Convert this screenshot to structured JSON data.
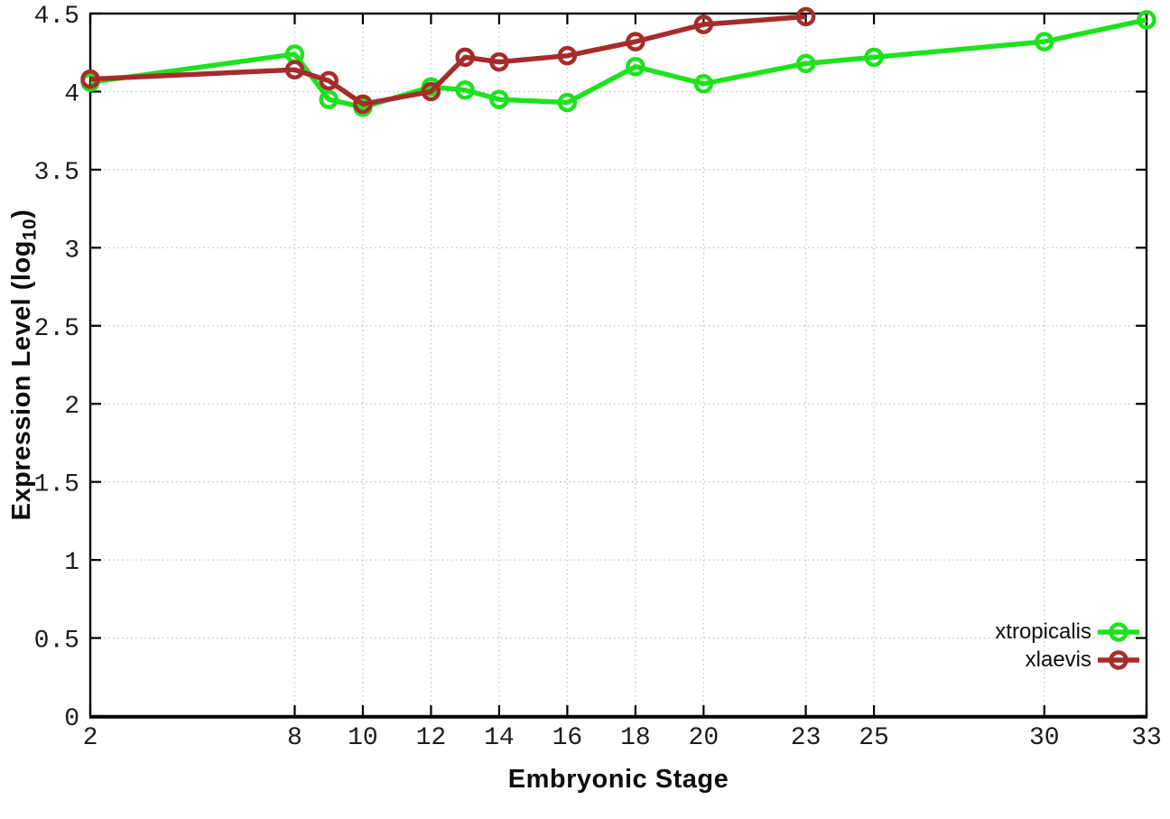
{
  "chart_data": {
    "type": "line",
    "title": "",
    "xlabel": "Embryonic Stage",
    "ylabel": "Expression Level (log10)",
    "ylabel_parts": {
      "prefix": "Expression Level (log",
      "sub": "10",
      "suffix": ")"
    },
    "xlim": [
      2,
      33
    ],
    "ylim": [
      0,
      4.5
    ],
    "x_ticks": [
      2,
      8,
      10,
      12,
      14,
      16,
      18,
      20,
      23,
      25,
      30,
      33
    ],
    "y_ticks": [
      0,
      0.5,
      1,
      1.5,
      2,
      2.5,
      3,
      3.5,
      4,
      4.5
    ],
    "grid": true,
    "grid_color": "#c6c6c6",
    "border_color": "#000000",
    "legend_position": "bottom-right",
    "series": [
      {
        "name": "xtropicalis",
        "color": "#1de21d",
        "x": [
          2,
          8,
          9,
          10,
          12,
          13,
          14,
          16,
          18,
          20,
          23,
          25,
          30,
          33
        ],
        "y": [
          4.06,
          4.24,
          3.95,
          3.9,
          4.03,
          4.01,
          3.95,
          3.93,
          4.16,
          4.05,
          4.18,
          4.22,
          4.32,
          4.46
        ]
      },
      {
        "name": "xlaevis",
        "color": "#a62c2c",
        "x": [
          2,
          8,
          9,
          10,
          12,
          13,
          14,
          16,
          18,
          20,
          23
        ],
        "y": [
          4.08,
          4.14,
          4.07,
          3.92,
          4.0,
          4.22,
          4.19,
          4.23,
          4.32,
          4.43,
          4.48
        ]
      }
    ]
  }
}
